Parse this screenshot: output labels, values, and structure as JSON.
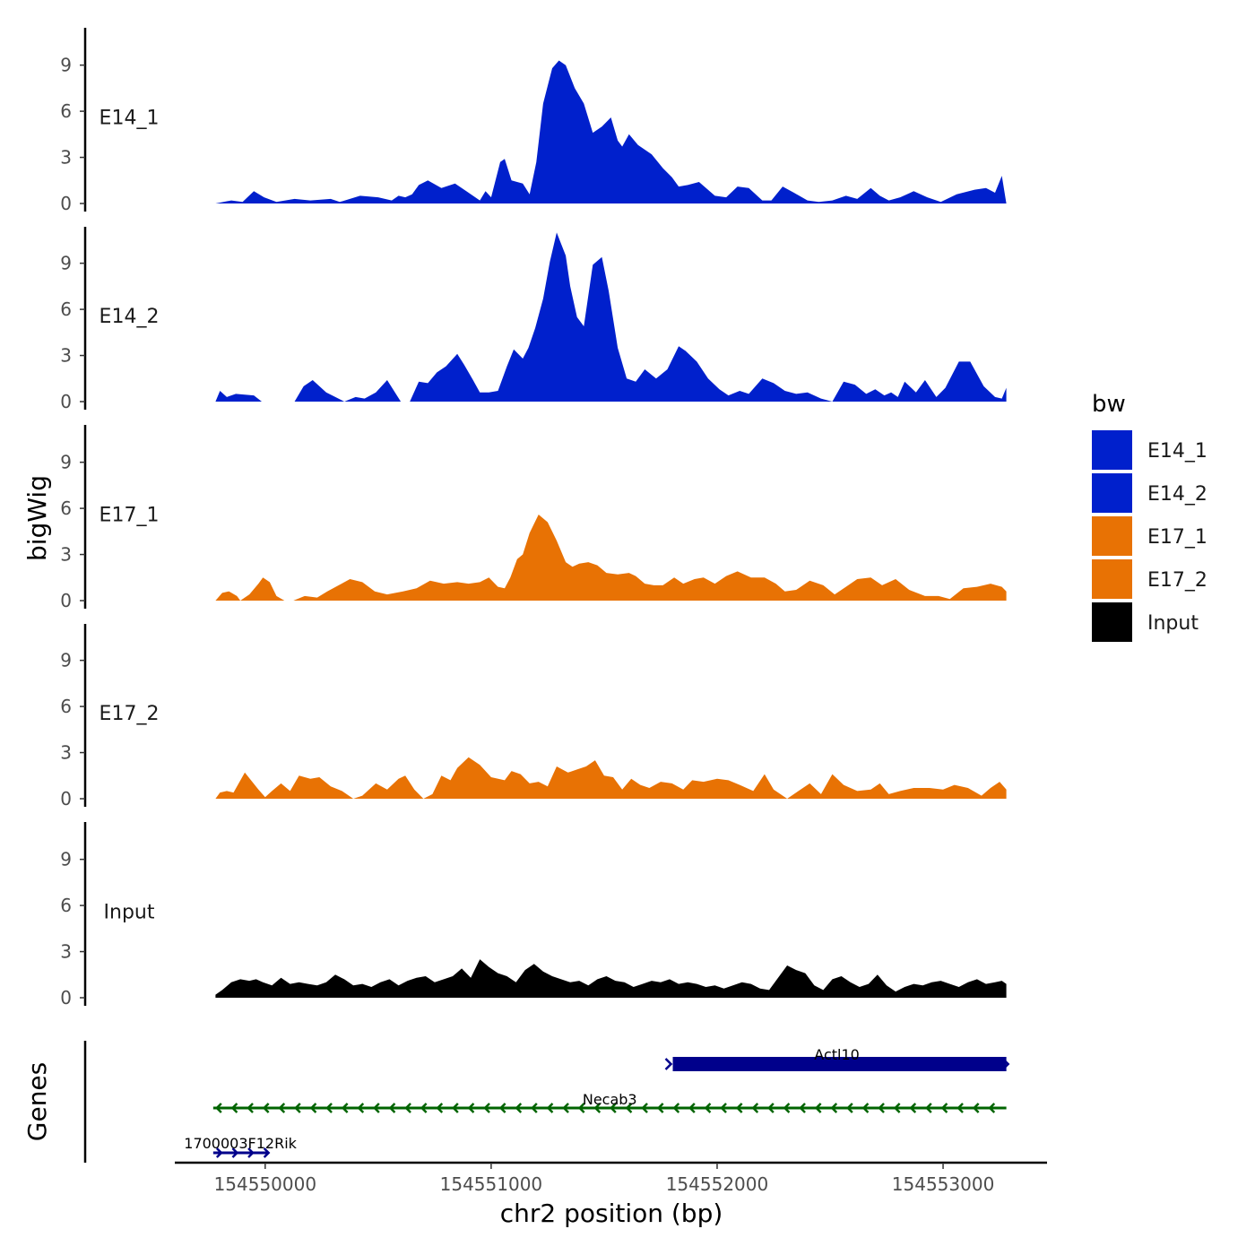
{
  "chart_data": {
    "type": "area",
    "title": "",
    "xlabel": "chr2 position (bp)",
    "ylabel": "bigWig",
    "genes_label": "Genes",
    "xlim": [
      154549600,
      154553460
    ],
    "ylim": [
      0,
      11.5
    ],
    "x_ticks": [
      154550000,
      154551000,
      154552000,
      154553000
    ],
    "x_tick_labels": [
      "154550000",
      "154551000",
      "154552000",
      "154553000"
    ],
    "y_ticks": [
      0,
      3,
      6,
      9
    ],
    "y_tick_labels": [
      "0",
      "3",
      "6",
      "9"
    ],
    "legend": {
      "title": "bw",
      "position": "right",
      "entries": [
        {
          "name": "E14_1",
          "color": "#0020CC"
        },
        {
          "name": "E14_2",
          "color": "#0020CC"
        },
        {
          "name": "E17_1",
          "color": "#E87204"
        },
        {
          "name": "E17_2",
          "color": "#E87204"
        },
        {
          "name": "Input",
          "color": "#000000"
        }
      ]
    },
    "series": [
      {
        "name": "E14_1",
        "color": "#0020CC",
        "x": [
          154549780,
          154549850,
          154549900,
          154549950,
          154549995,
          154550050,
          154550130,
          154550200,
          154550290,
          154550330,
          154550420,
          154550500,
          154550560,
          154550590,
          154550620,
          154550650,
          154550680,
          154550720,
          154550780,
          154550840,
          154550890,
          154550950,
          154550975,
          154551000,
          154551040,
          154551060,
          154551090,
          154551140,
          154551170,
          154551200,
          154551230,
          154551270,
          154551300,
          154551330,
          154551370,
          154551410,
          154551450,
          154551490,
          154551530,
          154551560,
          154551580,
          154551610,
          154551650,
          154551710,
          154551760,
          154551800,
          154551830,
          154551870,
          154551920,
          154551990,
          154552040,
          154552090,
          154552140,
          154552200,
          154552240,
          154552290,
          154552340,
          154552400,
          154552450,
          154552510,
          154552570,
          154552620,
          154552680,
          154552720,
          154552760,
          154552810,
          154552870,
          154552930,
          154552990,
          154553060,
          154553140,
          154553190,
          154553230,
          154553260,
          154553280
        ],
        "values": [
          0,
          0.2,
          0.1,
          0.8,
          0.4,
          0.1,
          0.3,
          0.2,
          0.3,
          0.1,
          0.5,
          0.4,
          0.2,
          0.5,
          0.4,
          0.6,
          1.2,
          1.5,
          1.0,
          1.3,
          0.8,
          0.2,
          0.8,
          0.4,
          2.7,
          2.9,
          1.5,
          1.3,
          0.6,
          2.7,
          6.5,
          8.8,
          9.3,
          9.0,
          7.5,
          6.5,
          4.6,
          5.0,
          5.6,
          4.1,
          3.7,
          4.5,
          3.8,
          3.2,
          2.3,
          1.7,
          1.1,
          1.2,
          1.4,
          0.5,
          0.4,
          1.1,
          1.0,
          0.2,
          0.2,
          1.1,
          0.7,
          0.2,
          0.1,
          0.2,
          0.5,
          0.3,
          1.0,
          0.5,
          0.2,
          0.4,
          0.8,
          0.4,
          0.1,
          0.6,
          0.9,
          1.0,
          0.7,
          1.8,
          0
        ]
      },
      {
        "name": "E14_2",
        "color": "#0020CC",
        "x": [
          154549780,
          154549800,
          154549830,
          154549870,
          154549950,
          154549985,
          154550130,
          154550170,
          154550210,
          154550270,
          154550350,
          154550400,
          154550440,
          154550490,
          154550540,
          154550600,
          154550640,
          154550680,
          154550720,
          154550760,
          154550800,
          154550850,
          154550880,
          154550920,
          154550950,
          154550990,
          154551030,
          154551070,
          154551100,
          154551140,
          154551165,
          154551195,
          154551230,
          154551260,
          154551290,
          154551330,
          154551350,
          154551380,
          154551410,
          154551450,
          154551490,
          154551520,
          154551560,
          154551600,
          154551640,
          154551680,
          154551730,
          154551780,
          154551830,
          154551860,
          154551910,
          154551960,
          154552010,
          154552050,
          154552100,
          154552140,
          154552200,
          154552250,
          154552300,
          154552350,
          154552400,
          154552460,
          154552510,
          154552560,
          154552610,
          154552660,
          154552700,
          154552740,
          154552770,
          154552800,
          154552830,
          154552880,
          154552920,
          154552970,
          154553010,
          154553070,
          154553120,
          154553180,
          154553230,
          154553260,
          154553280
        ],
        "values": [
          0,
          0.7,
          0.3,
          0.5,
          0.4,
          0.0,
          0.0,
          1.0,
          1.4,
          0.6,
          0.0,
          0.3,
          0.2,
          0.6,
          1.4,
          0.0,
          0.0,
          1.3,
          1.2,
          1.9,
          2.3,
          3.1,
          2.4,
          1.4,
          0.6,
          0.6,
          0.7,
          2.3,
          3.4,
          2.8,
          3.5,
          4.8,
          6.7,
          9.1,
          11.0,
          9.5,
          7.5,
          5.5,
          4.9,
          8.9,
          9.4,
          7.2,
          3.5,
          1.5,
          1.3,
          2.1,
          1.5,
          2.1,
          3.6,
          3.3,
          2.6,
          1.5,
          0.8,
          0.4,
          0.7,
          0.5,
          1.5,
          1.2,
          0.7,
          0.5,
          0.6,
          0.2,
          0.0,
          1.3,
          1.1,
          0.5,
          0.8,
          0.4,
          0.6,
          0.3,
          1.3,
          0.6,
          1.4,
          0.3,
          0.9,
          2.6,
          2.6,
          1.0,
          0.3,
          0.2,
          0.9
        ]
      },
      {
        "name": "E17_1",
        "color": "#E87204",
        "x": [
          154549780,
          154549810,
          154549840,
          154549875,
          154549890,
          154549930,
          154549970,
          154549990,
          154550020,
          154550050,
          154550085,
          154550125,
          154550175,
          154550230,
          154550275,
          154550325,
          154550375,
          154550430,
          154550485,
          154550540,
          154550610,
          154550670,
          154550730,
          154550790,
          154550850,
          154550900,
          154550950,
          154550990,
          154551030,
          154551060,
          154551085,
          154551115,
          154551140,
          154551170,
          154551210,
          154551250,
          154551290,
          154551330,
          154551360,
          154551390,
          154551430,
          154551470,
          154551510,
          154551560,
          154551610,
          154551640,
          154551680,
          154551720,
          154551760,
          154551810,
          154551850,
          154551900,
          154551940,
          154551990,
          154552040,
          154552090,
          154552150,
          154552210,
          154552260,
          154552300,
          154552350,
          154552410,
          154552470,
          154552520,
          154552570,
          154552620,
          154552680,
          154552730,
          154552790,
          154552850,
          154552920,
          154552980,
          154553030,
          154553090,
          154553150,
          154553210,
          154553260,
          154553280
        ],
        "values": [
          0,
          0.5,
          0.6,
          0.3,
          0.0,
          0.4,
          1.1,
          1.5,
          1.2,
          0.3,
          0.0,
          0.0,
          0.3,
          0.2,
          0.6,
          1.0,
          1.4,
          1.2,
          0.6,
          0.4,
          0.6,
          0.8,
          1.3,
          1.1,
          1.2,
          1.1,
          1.2,
          1.5,
          0.9,
          0.8,
          1.5,
          2.7,
          3.0,
          4.4,
          5.6,
          5.1,
          3.9,
          2.5,
          2.2,
          2.4,
          2.5,
          2.3,
          1.8,
          1.7,
          1.8,
          1.6,
          1.1,
          1.0,
          1.0,
          1.5,
          1.1,
          1.4,
          1.5,
          1.1,
          1.6,
          1.9,
          1.5,
          1.5,
          1.1,
          0.6,
          0.7,
          1.3,
          1.0,
          0.4,
          0.9,
          1.4,
          1.5,
          1.0,
          1.4,
          0.7,
          0.3,
          0.3,
          0.1,
          0.8,
          0.9,
          1.1,
          0.9,
          0.6
        ]
      },
      {
        "name": "E17_2",
        "color": "#E87204",
        "x": [
          154549780,
          154549800,
          154549830,
          154549860,
          154549910,
          154549970,
          154550000,
          154550030,
          154550070,
          154550110,
          154550150,
          154550200,
          154550240,
          154550290,
          154550340,
          154550390,
          154550430,
          154550490,
          154550540,
          154550590,
          154550620,
          154550660,
          154550700,
          154550740,
          154550780,
          154550820,
          154550850,
          154550900,
          154550950,
          154551000,
          154551060,
          154551090,
          154551130,
          154551170,
          154551210,
          154551250,
          154551290,
          154551340,
          154551380,
          154551420,
          154551460,
          154551500,
          154551540,
          154551580,
          154551620,
          154551660,
          154551700,
          154551750,
          154551800,
          154551850,
          154551890,
          154551940,
          154552000,
          154552050,
          154552100,
          154552160,
          154552210,
          154552250,
          154552310,
          154552360,
          154552410,
          154552460,
          154552510,
          154552560,
          154552620,
          154552680,
          154552720,
          154552760,
          154552810,
          154552870,
          154552940,
          154553000,
          154553050,
          154553110,
          154553170,
          154553210,
          154553250,
          154553280
        ],
        "values": [
          0,
          0.4,
          0.5,
          0.4,
          1.7,
          0.6,
          0.1,
          0.5,
          1.0,
          0.5,
          1.5,
          1.3,
          1.4,
          0.8,
          0.5,
          0.0,
          0.2,
          1.0,
          0.6,
          1.3,
          1.5,
          0.6,
          0.0,
          0.3,
          1.5,
          1.2,
          2.0,
          2.7,
          2.2,
          1.4,
          1.2,
          1.8,
          1.6,
          1.0,
          1.1,
          0.8,
          2.1,
          1.7,
          1.9,
          2.1,
          2.5,
          1.5,
          1.4,
          0.6,
          1.3,
          0.9,
          0.7,
          1.1,
          1.0,
          0.6,
          1.2,
          1.1,
          1.3,
          1.2,
          0.9,
          0.5,
          1.6,
          0.6,
          0.0,
          0.5,
          1.0,
          0.3,
          1.6,
          0.9,
          0.5,
          0.6,
          1.0,
          0.3,
          0.5,
          0.7,
          0.7,
          0.6,
          0.9,
          0.7,
          0.2,
          0.7,
          1.1,
          0.6
        ]
      },
      {
        "name": "Input",
        "color": "#000000",
        "x": [
          154549780,
          154549810,
          154549850,
          154549890,
          154549930,
          154549960,
          154549990,
          154550030,
          154550070,
          154550110,
          154550150,
          154550190,
          154550230,
          154550270,
          154550310,
          154550350,
          154550390,
          154550430,
          154550470,
          154550510,
          154550550,
          154550590,
          154550630,
          154550670,
          154550710,
          154550750,
          154550790,
          154550830,
          154550870,
          154550910,
          154550950,
          154550990,
          154551030,
          154551070,
          154551110,
          154551150,
          154551190,
          154551230,
          154551270,
          154551310,
          154551350,
          154551390,
          154551430,
          154551470,
          154551510,
          154551550,
          154551590,
          154551630,
          154551670,
          154551710,
          154551750,
          154551790,
          154551830,
          154551870,
          154551910,
          154551950,
          154551990,
          154552030,
          154552070,
          154552110,
          154552150,
          154552190,
          154552230,
          154552270,
          154552310,
          154552350,
          154552390,
          154552430,
          154552470,
          154552510,
          154552550,
          154552590,
          154552630,
          154552670,
          154552710,
          154552750,
          154552790,
          154552830,
          154552870,
          154552910,
          154552950,
          154552990,
          154553030,
          154553070,
          154553110,
          154553150,
          154553190,
          154553230,
          154553260,
          154553280
        ],
        "values": [
          0.2,
          0.5,
          1.0,
          1.2,
          1.1,
          1.2,
          1.0,
          0.8,
          1.3,
          0.9,
          1.0,
          0.9,
          0.8,
          1.0,
          1.5,
          1.2,
          0.8,
          0.9,
          0.7,
          1.0,
          1.2,
          0.8,
          1.1,
          1.3,
          1.4,
          1.0,
          1.2,
          1.4,
          1.9,
          1.3,
          2.5,
          2.0,
          1.6,
          1.4,
          1.0,
          1.8,
          2.2,
          1.7,
          1.4,
          1.2,
          1.0,
          1.1,
          0.8,
          1.2,
          1.4,
          1.1,
          1.0,
          0.7,
          0.9,
          1.1,
          1.0,
          1.2,
          0.9,
          1.0,
          0.9,
          0.7,
          0.8,
          0.6,
          0.8,
          1.0,
          0.9,
          0.6,
          0.5,
          1.3,
          2.1,
          1.8,
          1.6,
          0.8,
          0.5,
          1.2,
          1.4,
          1.0,
          0.7,
          0.9,
          1.5,
          0.8,
          0.4,
          0.7,
          0.9,
          0.8,
          1.0,
          1.1,
          0.9,
          0.7,
          1.0,
          1.2,
          0.9,
          1.0,
          1.1,
          0.9
        ]
      }
    ],
    "genes": [
      {
        "name": "Actl10",
        "start": 154551780,
        "end": 154553280,
        "strand": "+",
        "color": "#00008B",
        "style": "box"
      },
      {
        "name": "Necab3",
        "start": 154549770,
        "end": 154553280,
        "strand": "-",
        "color": "#006400",
        "style": "line"
      },
      {
        "name": "1700003F12Rik",
        "start": 154549770,
        "end": 154550010,
        "strand": "+",
        "color": "#00008B",
        "style": "line"
      }
    ]
  }
}
